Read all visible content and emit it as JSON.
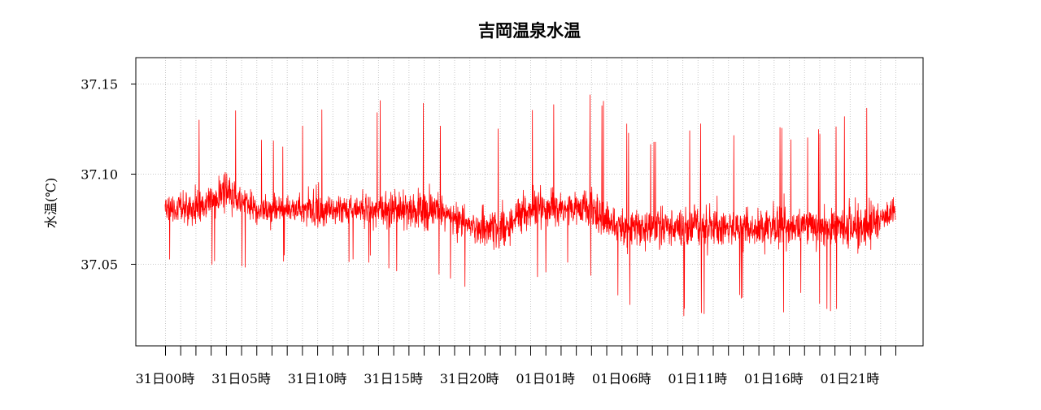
{
  "chart_data": {
    "type": "line",
    "title": "吉岡温泉水温",
    "xlabel": "",
    "ylabel": "水温(℃)",
    "ylim": [
      37.0,
      37.16
    ],
    "y_ticks": [
      "37.05",
      "37.10",
      "37.15"
    ],
    "y_tick_values": [
      37.05,
      37.1,
      37.15
    ],
    "x_tick_labels": [
      "31日00時",
      "31日05時",
      "31日10時",
      "31日15時",
      "31日20時",
      "01日01時",
      "01日06時",
      "01日11時",
      "01日16時",
      "01日21時"
    ],
    "x_hours_range": [
      0,
      48
    ],
    "grid": true,
    "series": [
      {
        "color": "#ff0000",
        "x": [
          0,
          2,
          4,
          6,
          8,
          10,
          12,
          14,
          16,
          18,
          20,
          22,
          24,
          26,
          28,
          30,
          32,
          34,
          36,
          38,
          40,
          42,
          44,
          46,
          48
        ],
        "y_min": [
          37.05,
          37.04,
          37.05,
          37.04,
          37.05,
          37.04,
          37.05,
          37.05,
          37.04,
          37.04,
          37.03,
          37.03,
          37.04,
          37.05,
          37.04,
          37.03,
          37.02,
          37.02,
          37.02,
          37.03,
          37.02,
          37.03,
          37.02,
          37.02,
          37.05
        ],
        "y_mean": [
          37.08,
          37.08,
          37.09,
          37.08,
          37.08,
          37.08,
          37.08,
          37.08,
          37.08,
          37.08,
          37.07,
          37.07,
          37.08,
          37.08,
          37.08,
          37.07,
          37.07,
          37.07,
          37.07,
          37.07,
          37.07,
          37.07,
          37.07,
          37.07,
          37.08
        ],
        "y_max": [
          37.11,
          37.13,
          37.15,
          37.12,
          37.12,
          37.14,
          37.13,
          37.14,
          37.15,
          37.13,
          37.12,
          37.13,
          37.14,
          37.14,
          37.15,
          37.13,
          37.12,
          37.12,
          37.14,
          37.12,
          37.13,
          37.12,
          37.13,
          37.14,
          37.1
        ]
      }
    ]
  }
}
